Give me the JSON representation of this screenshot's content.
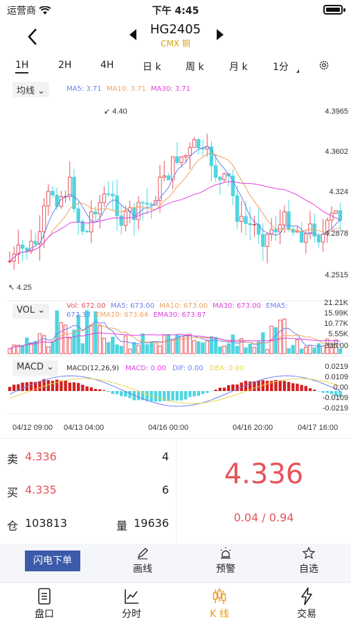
{
  "status": {
    "carrier": "运营商",
    "time": "下午 4:45"
  },
  "nav": {
    "title": "HG2405",
    "subtitle": "CMX 铜"
  },
  "periods": [
    {
      "label": "1H",
      "active": true
    },
    {
      "label": "2H"
    },
    {
      "label": "4H"
    },
    {
      "label": "日 k"
    },
    {
      "label": "周 k"
    },
    {
      "label": "月 k"
    },
    {
      "label": "1分"
    }
  ],
  "main_chart": {
    "selector_label": "均线",
    "legend": {
      "ma5": "MA5: 3.71",
      "ma10": "MA10: 3.71",
      "ma30": "MA30: 3.71"
    },
    "y_ticks": [
      "4.3965",
      "4.3602",
      "4.324",
      "4.2878",
      "4.2515"
    ],
    "high_marker": "4.40",
    "low_marker": "4.25"
  },
  "vol_chart": {
    "selector_label": "VOL",
    "legend": {
      "vol": "Vol: 672.00",
      "ma5": "MA5: 673.00",
      "ma10": "MA10: 673.00",
      "ma30": "MA30: 673.00",
      "ema5": "EMA5:",
      "ema5_value": "673.33",
      "ema10": "EMA10: 673.64",
      "ema30": "EMA30: 673.87"
    },
    "y_ticks": [
      "21.21K",
      "15.99K",
      "10.77K",
      "5.55K",
      "336.00"
    ]
  },
  "macd_chart": {
    "selector_label": "MACD",
    "legend": {
      "params": "MACD(12,26,9)",
      "macd": "MACD: 0.00",
      "dif": "DIF: 0.00",
      "dea": "DEA: 0.00"
    },
    "y_ticks": [
      "0.0219",
      "0.0109",
      "0.00",
      "-0.0109",
      "-0.0219"
    ]
  },
  "x_axis": [
    "04/12 09:00",
    "04/13 04:00",
    "04/16 00:00",
    "04/16 20:00",
    "04/17 16:00"
  ],
  "quote": {
    "sell_label": "卖",
    "sell_price": "4.336",
    "sell_qty": "4",
    "buy_label": "买",
    "buy_price": "4.335",
    "buy_qty": "6",
    "oi_label": "仓",
    "oi_value": "103813",
    "vol_label": "量",
    "vol_value": "19636",
    "last_price": "4.336",
    "change": "0.04 / 0.94"
  },
  "tools": {
    "flash": "闪电下单",
    "draw": "画线",
    "alert": "预警",
    "watch": "自选"
  },
  "tabs": {
    "book": "盘口",
    "timeshare": "分时",
    "kline": "K 线",
    "trade": "交易"
  },
  "colors": {
    "up": "#e8525a",
    "down": "#4fd5e0",
    "ma5": "#6b7ff0",
    "ma10": "#f0a060",
    "ma30": "#e040e0",
    "accent": "#f09a14"
  }
}
